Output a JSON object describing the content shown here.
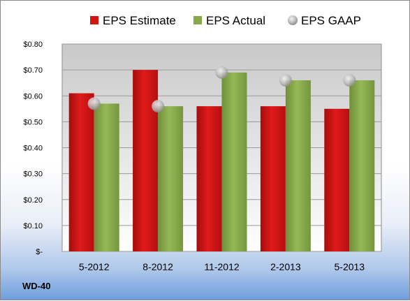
{
  "chart_data": {
    "type": "bar",
    "categories": [
      "5-2012",
      "8-2012",
      "11-2012",
      "2-2013",
      "5-2013"
    ],
    "series": [
      {
        "name": "EPS Estimate",
        "kind": "bar",
        "color": "#d21414",
        "values": [
          0.61,
          0.7,
          0.56,
          0.56,
          0.55
        ]
      },
      {
        "name": "EPS Actual",
        "kind": "bar",
        "color": "#86a84a",
        "values": [
          0.57,
          0.56,
          0.69,
          0.66,
          0.66
        ]
      },
      {
        "name": "EPS GAAP",
        "kind": "marker",
        "color": "#b8b8b8",
        "values": [
          0.57,
          0.56,
          0.69,
          0.66,
          0.66
        ]
      }
    ],
    "yticks": [
      "$-",
      "$0.10",
      "$0.20",
      "$0.30",
      "$0.40",
      "$0.50",
      "$0.60",
      "$0.70",
      "$0.80"
    ],
    "ylim": [
      0,
      0.8
    ],
    "grid": true,
    "legend_position": "top"
  },
  "company": "WD-40"
}
